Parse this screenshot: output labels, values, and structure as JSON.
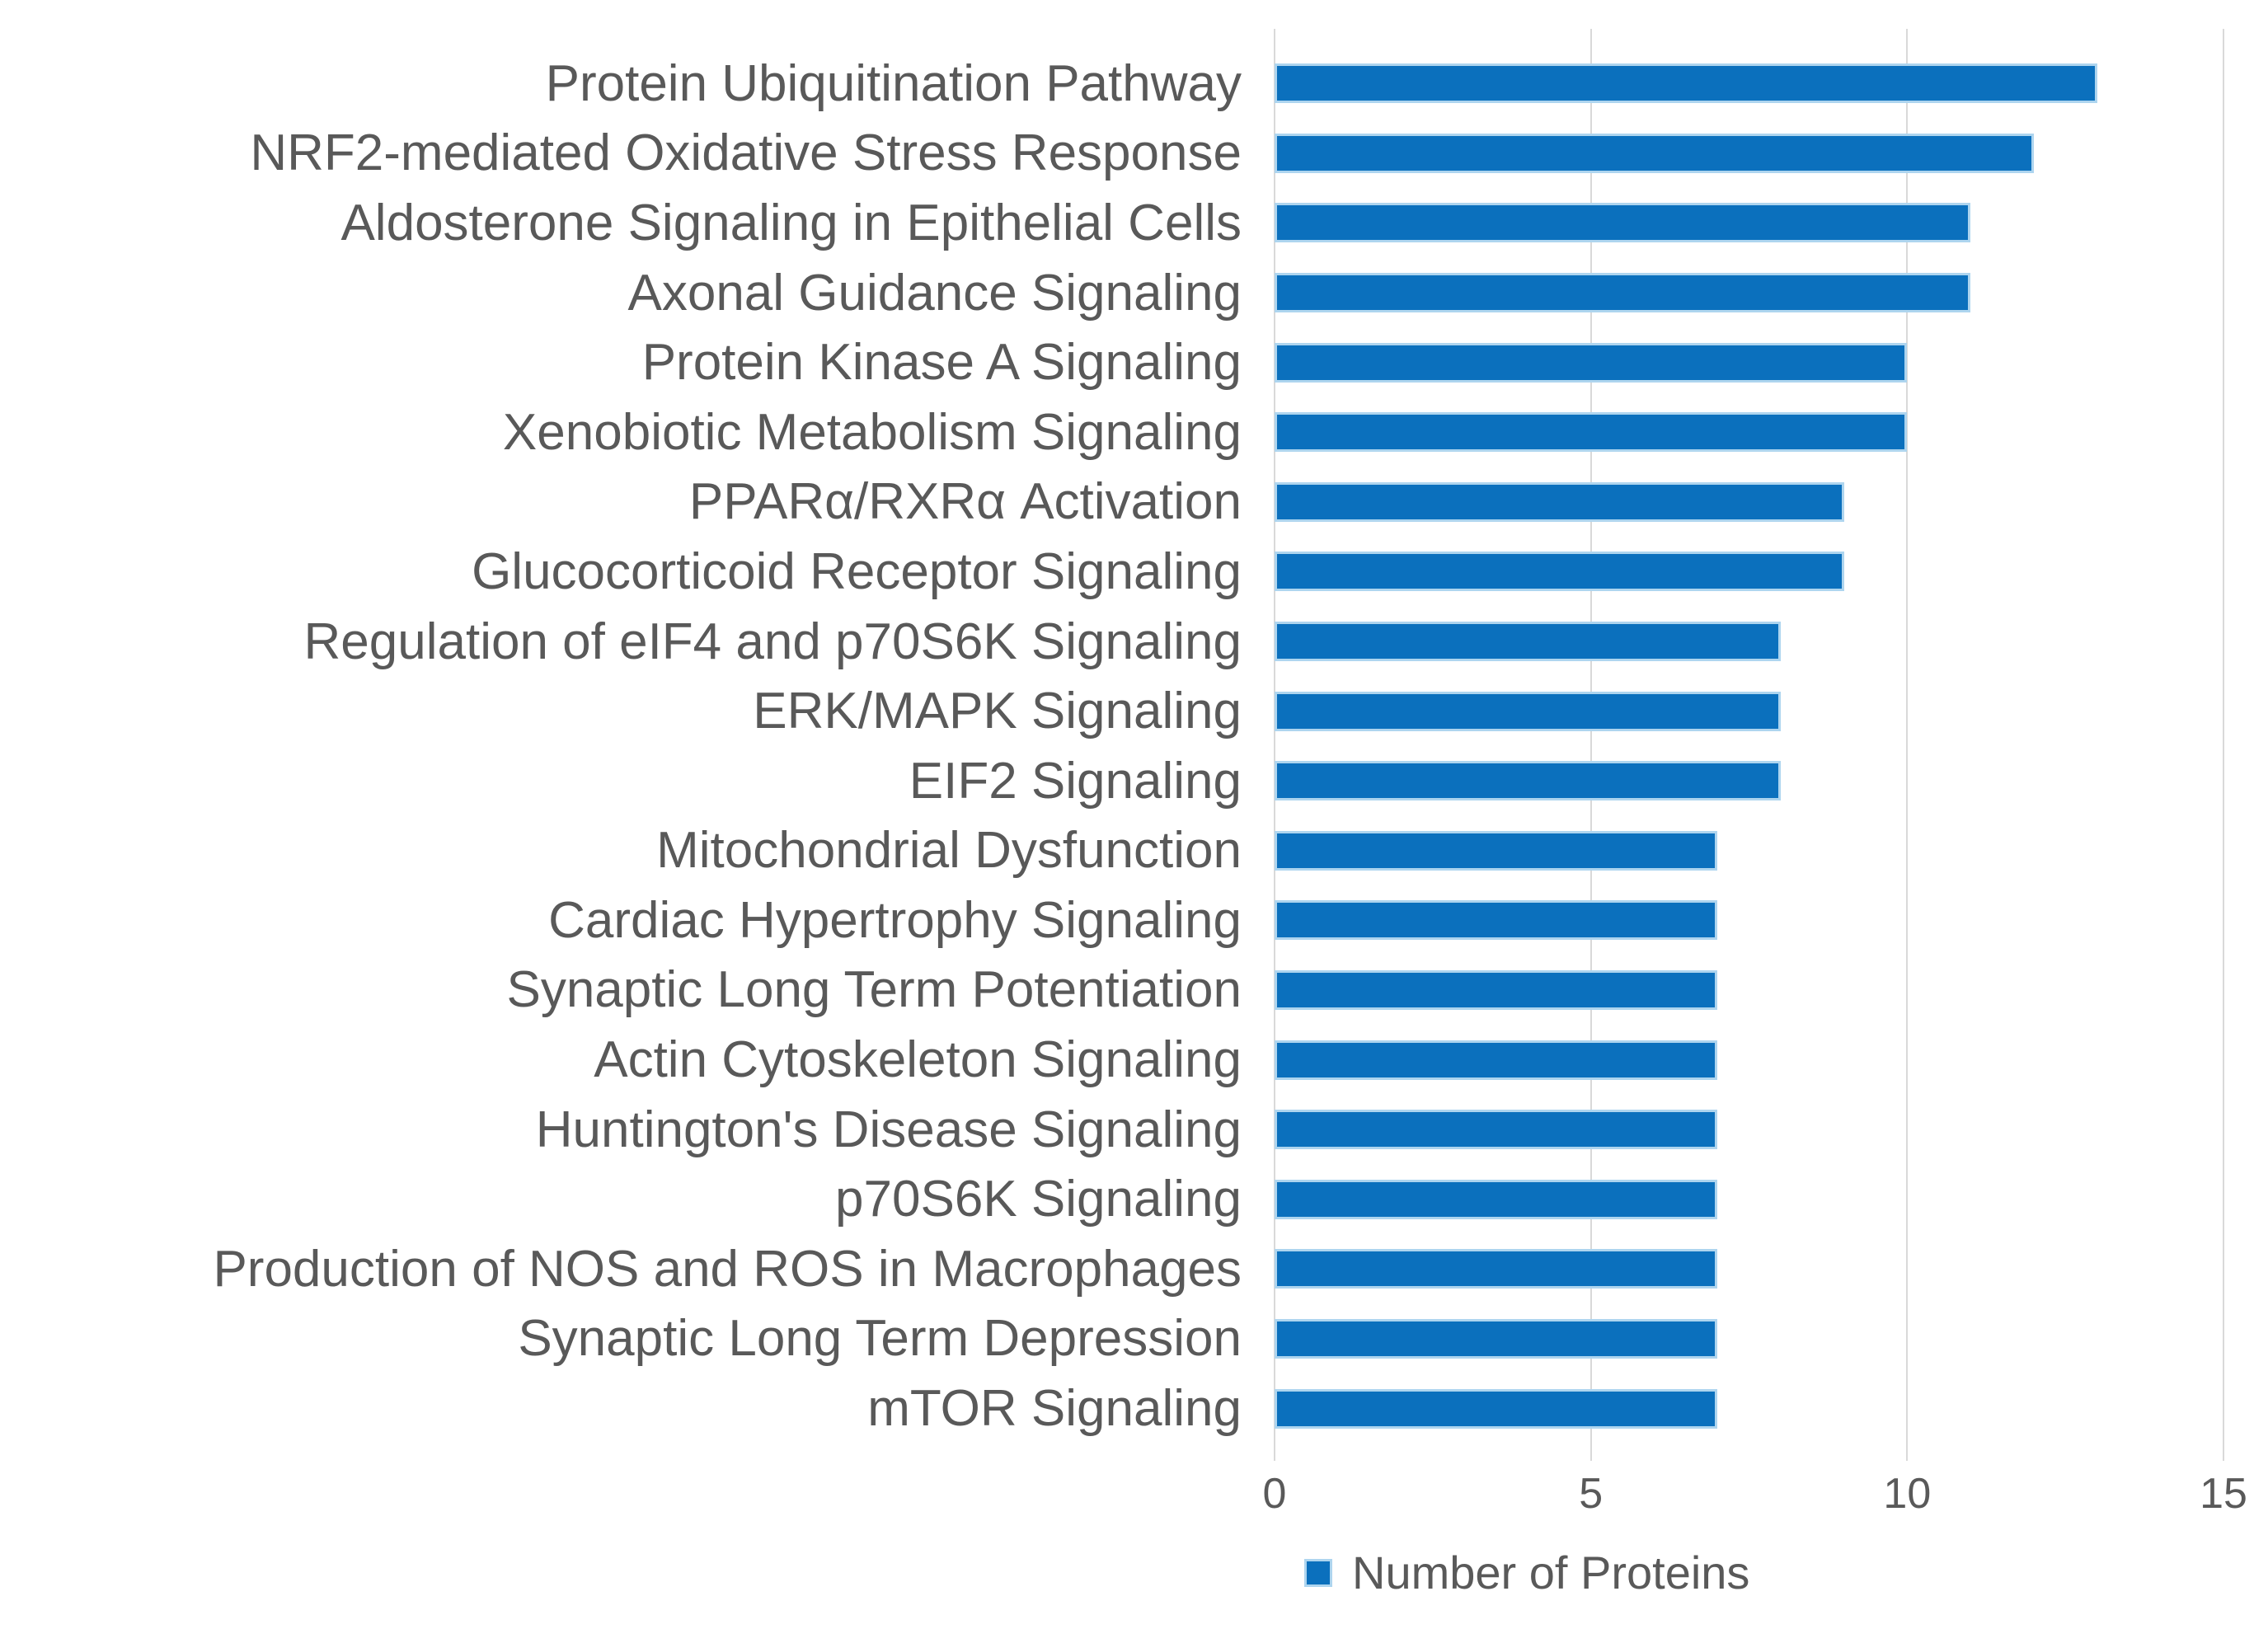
{
  "chart_data": {
    "type": "bar",
    "orientation": "horizontal",
    "title": "",
    "xlabel": "",
    "ylabel": "",
    "xlim": [
      0,
      15
    ],
    "x_ticks": [
      0,
      5,
      10,
      15
    ],
    "grid": true,
    "legend": {
      "label": "Number of Proteins",
      "position": "bottom"
    },
    "series_name": "Number of Proteins",
    "categories": [
      "Protein Ubiquitination Pathway",
      "NRF2-mediated Oxidative Stress Response",
      "Aldosterone Signaling in Epithelial Cells",
      "Axonal Guidance Signaling",
      "Protein Kinase A Signaling",
      "Xenobiotic Metabolism Signaling",
      "PPARα/RXRα Activation",
      "Glucocorticoid Receptor Signaling",
      "Regulation of eIF4 and p70S6K Signaling",
      "ERK/MAPK Signaling",
      "EIF2 Signaling",
      "Mitochondrial Dysfunction",
      "Cardiac Hypertrophy Signaling",
      "Synaptic Long Term Potentiation",
      "Actin Cytoskeleton Signaling",
      "Huntington's Disease Signaling",
      "p70S6K Signaling",
      "Production of NOS and ROS in Macrophages",
      "Synaptic Long Term Depression",
      "mTOR Signaling"
    ],
    "values": [
      13,
      12,
      11,
      11,
      10,
      10,
      9,
      9,
      8,
      8,
      8,
      7,
      7,
      7,
      7,
      7,
      7,
      7,
      7,
      7
    ],
    "colors": {
      "bar": "#0b70bd",
      "bar_border": "#aed5ef",
      "text": "#595959",
      "gridline": "#d9d9d9",
      "background": "#ffffff"
    }
  }
}
